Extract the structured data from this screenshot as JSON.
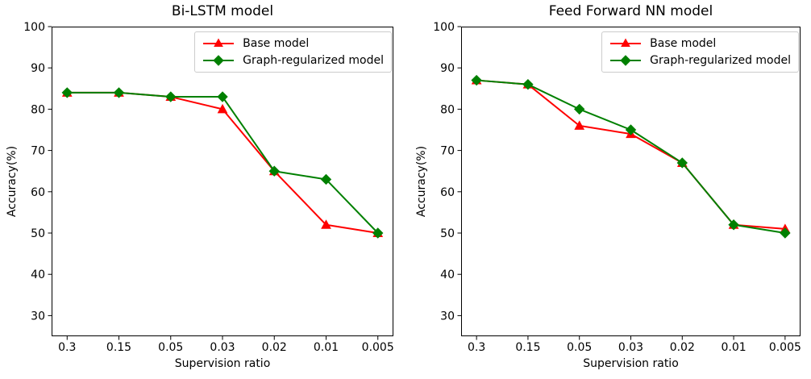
{
  "figure": {
    "background": "#ffffff",
    "spine_color": "#000000",
    "legend_border_color": "#cccccc"
  },
  "chart_data": [
    {
      "type": "line",
      "title": "Bi-LSTM model",
      "xlabel": "Supervision ratio",
      "ylabel": "Accuracy(%)",
      "categories": [
        "0.3",
        "0.15",
        "0.05",
        "0.03",
        "0.02",
        "0.01",
        "0.005"
      ],
      "yticks": [
        30,
        40,
        50,
        60,
        70,
        80,
        90,
        100
      ],
      "ylim": [
        25,
        100
      ],
      "grid": false,
      "legend_position": "upper right",
      "series": [
        {
          "name": "Base model",
          "color": "#ff0000",
          "marker": "triangle",
          "values": [
            84,
            84,
            83,
            80,
            65,
            52,
            50
          ]
        },
        {
          "name": "Graph-regularized model",
          "color": "#008000",
          "marker": "diamond",
          "values": [
            84,
            84,
            83,
            83,
            65,
            63,
            50
          ]
        }
      ]
    },
    {
      "type": "line",
      "title": "Feed Forward NN model",
      "xlabel": "Supervision ratio",
      "ylabel": "Accuracy(%)",
      "categories": [
        "0.3",
        "0.15",
        "0.05",
        "0.03",
        "0.02",
        "0.01",
        "0.005"
      ],
      "yticks": [
        30,
        40,
        50,
        60,
        70,
        80,
        90,
        100
      ],
      "ylim": [
        25,
        100
      ],
      "grid": false,
      "legend_position": "upper right",
      "series": [
        {
          "name": "Base model",
          "color": "#ff0000",
          "marker": "triangle",
          "values": [
            87,
            86,
            76,
            74,
            67,
            52,
            51
          ]
        },
        {
          "name": "Graph-regularized model",
          "color": "#008000",
          "marker": "diamond",
          "values": [
            87,
            86,
            80,
            75,
            67,
            52,
            50
          ]
        }
      ]
    }
  ]
}
